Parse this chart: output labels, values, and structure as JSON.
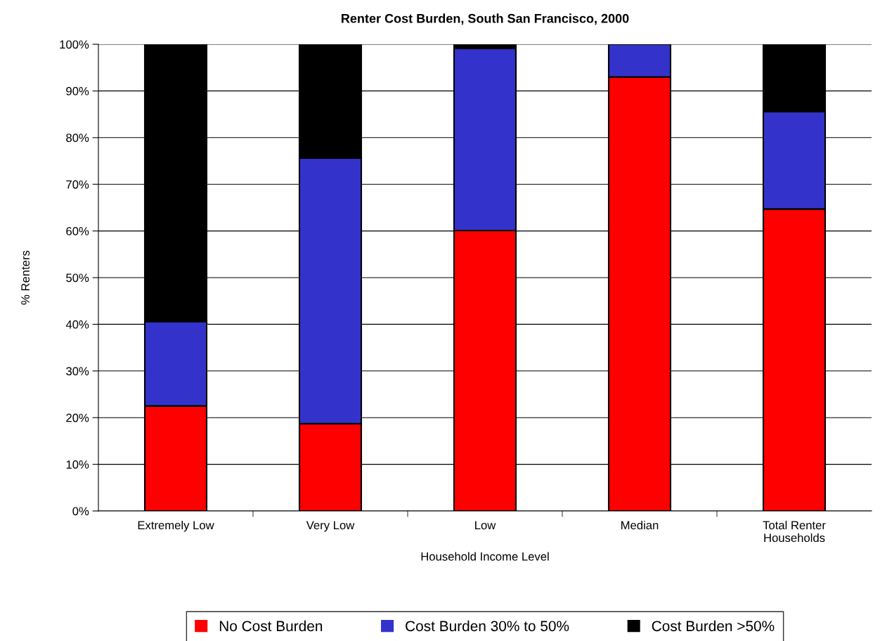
{
  "chart_data": {
    "type": "bar",
    "title": "Renter Cost Burden, South San Francisco, 2000",
    "xlabel": "Household Income Level",
    "ylabel": "% Renters",
    "categories": [
      "Extremely Low",
      "Very Low",
      "Low",
      "Median",
      "Total Renter\nHouseholds"
    ],
    "stacked": true,
    "series": [
      {
        "name": "No Cost Burden",
        "color": "#ff0000",
        "values": [
          22.5,
          18.7,
          60.1,
          93.0,
          64.7
        ]
      },
      {
        "name": "Cost Burden 30% to 50%",
        "color": "#3333cc",
        "values": [
          18.1,
          56.9,
          39.0,
          7.0,
          20.9
        ]
      },
      {
        "name": "Cost Burden >50%",
        "color": "#000000",
        "values": [
          59.4,
          24.4,
          0.9,
          0.0,
          14.4
        ]
      }
    ],
    "ylim": [
      0,
      100
    ],
    "yticks": [
      {
        "value": 0,
        "label": "0%"
      },
      {
        "value": 10,
        "label": "10%"
      },
      {
        "value": 20,
        "label": "20%"
      },
      {
        "value": 30,
        "label": "30%"
      },
      {
        "value": 40,
        "label": "40%"
      },
      {
        "value": 50,
        "label": "50%"
      },
      {
        "value": 60,
        "label": "60%"
      },
      {
        "value": 70,
        "label": "70%"
      },
      {
        "value": 80,
        "label": "80%"
      },
      {
        "value": 90,
        "label": "90%"
      },
      {
        "value": 100,
        "label": "100%"
      }
    ],
    "grid": "y",
    "legend": "bottom"
  }
}
